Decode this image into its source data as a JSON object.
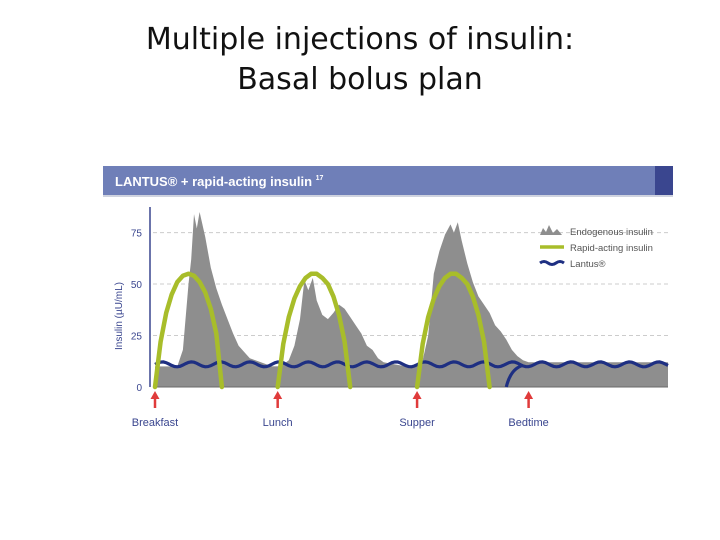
{
  "slide": {
    "title_line1": "Multiple injections of insulin:",
    "title_line2": "Basal bolus plan"
  },
  "chart_data": {
    "type": "area",
    "title": "LANTUS® + rapid-acting insulin",
    "title_superscript": "17",
    "ylabel": "Insulin (µU/mL)",
    "xlabel": "",
    "ylim": [
      0,
      85
    ],
    "yticks": [
      0,
      25,
      50,
      75
    ],
    "grid": "dashed horizontal",
    "legend_position": "top-right",
    "meals": [
      "Breakfast",
      "Lunch",
      "Supper",
      "Bedtime"
    ],
    "meal_positions": [
      0,
      22,
      47,
      67
    ],
    "x_range": [
      0,
      92
    ],
    "series": [
      {
        "name": "Endogenous insulin",
        "style": "area",
        "color": "#8e8e8e",
        "x": [
          0,
          1,
          2,
          4,
          5,
          6,
          6.5,
          7,
          7.5,
          8,
          9,
          10,
          11,
          12,
          13,
          14,
          15,
          17,
          19,
          21,
          22,
          23,
          24,
          25,
          26,
          26.8,
          27.5,
          28.3,
          29,
          30,
          31,
          32,
          33,
          34,
          35,
          36,
          37,
          38,
          39,
          40,
          41,
          43,
          45,
          47,
          48,
          49,
          50,
          51,
          52,
          53,
          53.6,
          54.3,
          55,
          56,
          57,
          58,
          59,
          60,
          61,
          62,
          63,
          64,
          65,
          66,
          67,
          92
        ],
        "y": [
          0,
          5,
          8,
          10,
          18,
          50,
          62,
          84,
          77,
          85,
          73,
          58,
          48,
          40,
          33,
          26,
          20,
          14,
          12,
          10,
          10,
          11,
          13,
          20,
          33,
          52,
          47,
          53,
          42,
          35,
          33,
          36,
          40,
          38,
          34,
          30,
          26,
          20,
          18,
          14,
          12,
          11,
          10,
          10,
          13,
          25,
          55,
          66,
          74,
          79,
          75,
          80,
          71,
          60,
          51,
          44,
          40,
          36,
          30,
          27,
          23,
          18,
          15,
          13,
          12,
          12
        ]
      },
      {
        "name": "Rapid-acting insulin",
        "style": "line",
        "color": "#a8bd2a",
        "x": [
          0,
          1,
          2,
          3,
          4,
          5,
          6,
          7,
          8,
          9,
          10,
          11,
          12,
          13,
          14,
          15,
          16,
          22,
          23,
          24,
          25,
          26,
          27,
          28,
          29,
          30,
          31,
          32,
          33,
          34,
          35,
          36,
          37,
          38,
          47,
          48,
          49,
          50,
          51,
          52,
          53,
          54,
          55,
          56,
          57,
          58,
          59,
          60,
          61,
          62,
          63
        ],
        "y": [
          0,
          22,
          36,
          45,
          51,
          54,
          55,
          54,
          51,
          46,
          38,
          26,
          0,
          null,
          null,
          null,
          null,
          0,
          21,
          34,
          43,
          49,
          53,
          55,
          55,
          53,
          50,
          44,
          35,
          22,
          0,
          null,
          null,
          null,
          0,
          21,
          34,
          43,
          49,
          53,
          55,
          55,
          53,
          50,
          44,
          35,
          22,
          0,
          null,
          null,
          null
        ]
      },
      {
        "name": "Lantus®",
        "style": "wavy-line",
        "color": "#1e2f82",
        "x": [
          0,
          92
        ],
        "y": [
          11,
          11
        ],
        "second_dose_from": 62
      }
    ]
  }
}
